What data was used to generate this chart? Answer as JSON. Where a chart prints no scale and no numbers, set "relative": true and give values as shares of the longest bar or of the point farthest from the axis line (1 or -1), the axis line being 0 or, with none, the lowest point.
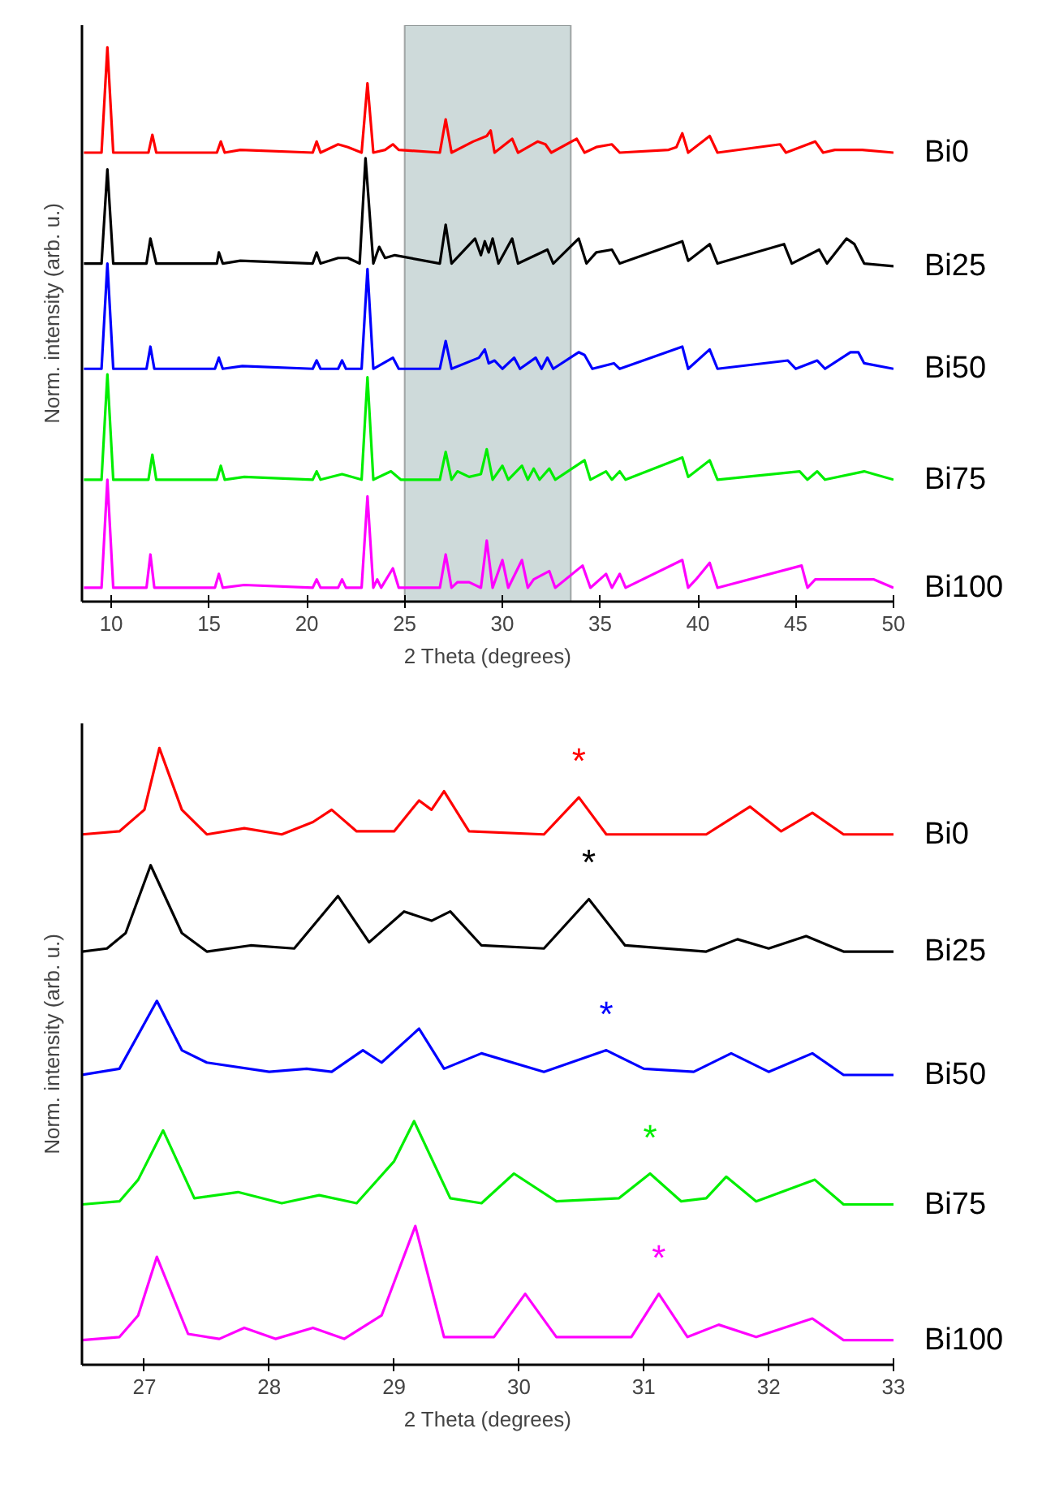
{
  "chart_data": [
    {
      "type": "line",
      "relative": true,
      "xlabel": "2 Theta (degrees)",
      "ylabel": "Norm. intensity (arb. u.)",
      "xlim": [
        8.5,
        50
      ],
      "xticks": [
        10,
        15,
        20,
        25,
        30,
        35,
        40,
        45,
        50
      ],
      "grid": false,
      "legend": false,
      "marker": "none",
      "line_style": "solid",
      "bands": [
        {
          "axis": "x",
          "from": 25,
          "to": 33.5,
          "color": "#c5d3d3"
        }
      ],
      "series": [
        {
          "name": "Bi0",
          "color": "#ff0000",
          "x": [
            8.6,
            9.5,
            9.8,
            10.1,
            11.9,
            12.1,
            12.3,
            15.4,
            15.6,
            15.8,
            16.6,
            20.3,
            20.5,
            20.7,
            21.6,
            22.1,
            22.8,
            23.1,
            23.4,
            24.0,
            24.4,
            24.7,
            26.8,
            27.1,
            27.4,
            28.5,
            29.2,
            29.4,
            29.6,
            30.5,
            30.8,
            31.8,
            32.2,
            32.5,
            33.8,
            34.2,
            34.8,
            35.6,
            36.0,
            38.5,
            38.9,
            39.2,
            39.5,
            40.6,
            41.0,
            44.2,
            44.5,
            46.0,
            46.4,
            47.0,
            48.4,
            50.0
          ],
          "values": [
            0.81,
            0.81,
            1.0,
            0.81,
            0.81,
            0.842,
            0.81,
            0.81,
            0.83,
            0.81,
            0.815,
            0.81,
            0.83,
            0.81,
            0.825,
            0.82,
            0.81,
            0.935,
            0.81,
            0.815,
            0.825,
            0.815,
            0.81,
            0.87,
            0.81,
            0.83,
            0.84,
            0.85,
            0.81,
            0.835,
            0.81,
            0.83,
            0.825,
            0.81,
            0.835,
            0.81,
            0.82,
            0.825,
            0.81,
            0.815,
            0.82,
            0.845,
            0.81,
            0.84,
            0.81,
            0.825,
            0.81,
            0.83,
            0.81,
            0.815,
            0.815,
            0.81
          ]
        },
        {
          "name": "Bi25",
          "color": "#000000",
          "x": [
            8.6,
            9.5,
            9.8,
            10.1,
            11.8,
            12.0,
            12.3,
            15.4,
            15.5,
            15.7,
            16.6,
            20.3,
            20.5,
            20.7,
            21.6,
            22.1,
            22.7,
            23.0,
            23.4,
            23.7,
            24.0,
            24.5,
            26.8,
            27.1,
            27.4,
            28.6,
            28.9,
            29.1,
            29.3,
            29.5,
            29.8,
            30.5,
            30.8,
            32.3,
            32.6,
            33.9,
            34.3,
            34.8,
            35.6,
            36.0,
            38.8,
            39.2,
            39.5,
            40.6,
            41.0,
            44.4,
            44.8,
            46.2,
            46.6,
            47.6,
            48.0,
            48.5,
            50.0
          ],
          "values": [
            0.61,
            0.61,
            0.78,
            0.61,
            0.61,
            0.655,
            0.61,
            0.61,
            0.63,
            0.61,
            0.615,
            0.61,
            0.63,
            0.61,
            0.62,
            0.62,
            0.61,
            0.8,
            0.61,
            0.64,
            0.62,
            0.625,
            0.61,
            0.68,
            0.61,
            0.655,
            0.625,
            0.65,
            0.63,
            0.655,
            0.61,
            0.655,
            0.61,
            0.635,
            0.61,
            0.655,
            0.61,
            0.63,
            0.635,
            0.61,
            0.645,
            0.65,
            0.615,
            0.645,
            0.61,
            0.645,
            0.61,
            0.635,
            0.61,
            0.655,
            0.645,
            0.61,
            0.605
          ]
        },
        {
          "name": "Bi50",
          "color": "#0000ff",
          "x": [
            8.6,
            9.5,
            9.8,
            10.1,
            11.8,
            12.0,
            12.2,
            15.3,
            15.5,
            15.7,
            16.7,
            20.3,
            20.5,
            20.7,
            21.6,
            21.8,
            22.0,
            22.8,
            23.1,
            23.4,
            24.4,
            24.7,
            26.8,
            27.1,
            27.4,
            28.8,
            29.1,
            29.3,
            29.6,
            30.0,
            30.6,
            30.9,
            31.7,
            32.0,
            32.3,
            32.6,
            33.9,
            34.2,
            34.6,
            35.7,
            36.0,
            39.2,
            39.5,
            40.6,
            41.0,
            44.6,
            45.0,
            46.1,
            46.5,
            47.8,
            48.2,
            48.5,
            50.0
          ],
          "values": [
            0.42,
            0.42,
            0.61,
            0.42,
            0.42,
            0.46,
            0.42,
            0.42,
            0.44,
            0.42,
            0.425,
            0.42,
            0.435,
            0.42,
            0.42,
            0.435,
            0.42,
            0.42,
            0.6,
            0.42,
            0.44,
            0.42,
            0.42,
            0.47,
            0.42,
            0.44,
            0.455,
            0.43,
            0.435,
            0.42,
            0.44,
            0.42,
            0.44,
            0.42,
            0.44,
            0.42,
            0.45,
            0.445,
            0.42,
            0.43,
            0.42,
            0.46,
            0.42,
            0.455,
            0.42,
            0.435,
            0.42,
            0.435,
            0.42,
            0.45,
            0.45,
            0.43,
            0.42
          ]
        },
        {
          "name": "Bi75",
          "color": "#00ee00",
          "x": [
            8.6,
            9.5,
            9.8,
            10.1,
            11.9,
            12.1,
            12.3,
            15.4,
            15.6,
            15.8,
            16.8,
            20.3,
            20.5,
            20.7,
            21.8,
            22.8,
            23.1,
            23.4,
            24.3,
            24.8,
            26.8,
            27.1,
            27.4,
            27.7,
            28.3,
            28.9,
            29.2,
            29.5,
            30.0,
            30.3,
            31.0,
            31.3,
            31.6,
            31.9,
            32.4,
            32.7,
            34.2,
            34.5,
            35.3,
            35.6,
            36.0,
            36.3,
            39.2,
            39.5,
            40.6,
            41.0,
            45.2,
            45.6,
            46.1,
            46.5,
            48.5,
            49.0,
            50.0
          ],
          "values": [
            0.22,
            0.22,
            0.41,
            0.22,
            0.22,
            0.265,
            0.22,
            0.22,
            0.245,
            0.22,
            0.225,
            0.22,
            0.235,
            0.22,
            0.23,
            0.22,
            0.405,
            0.22,
            0.235,
            0.22,
            0.22,
            0.27,
            0.22,
            0.235,
            0.225,
            0.23,
            0.275,
            0.22,
            0.245,
            0.22,
            0.245,
            0.22,
            0.24,
            0.22,
            0.24,
            0.22,
            0.255,
            0.22,
            0.235,
            0.22,
            0.235,
            0.22,
            0.26,
            0.225,
            0.255,
            0.22,
            0.235,
            0.22,
            0.235,
            0.22,
            0.235,
            0.23,
            0.22
          ]
        },
        {
          "name": "Bi100",
          "color": "#ff00ff",
          "x": [
            8.6,
            9.5,
            9.8,
            10.1,
            11.8,
            12.0,
            12.2,
            15.3,
            15.5,
            15.7,
            16.8,
            20.3,
            20.5,
            20.7,
            21.6,
            21.8,
            22.0,
            22.8,
            23.1,
            23.4,
            23.6,
            23.8,
            24.4,
            24.7,
            26.8,
            27.1,
            27.4,
            27.7,
            28.3,
            28.9,
            29.2,
            29.5,
            30.0,
            30.3,
            31.0,
            31.3,
            31.6,
            32.4,
            32.7,
            34.1,
            34.5,
            35.3,
            35.6,
            36.0,
            36.3,
            39.2,
            39.5,
            39.9,
            40.6,
            41.0,
            45.3,
            45.6,
            46.0,
            49.0,
            50.0
          ],
          "values": [
            0.025,
            0.025,
            0.22,
            0.025,
            0.025,
            0.085,
            0.025,
            0.025,
            0.05,
            0.025,
            0.03,
            0.025,
            0.04,
            0.025,
            0.025,
            0.04,
            0.025,
            0.025,
            0.19,
            0.025,
            0.04,
            0.025,
            0.06,
            0.025,
            0.025,
            0.085,
            0.025,
            0.035,
            0.035,
            0.025,
            0.11,
            0.025,
            0.075,
            0.025,
            0.075,
            0.025,
            0.04,
            0.055,
            0.025,
            0.065,
            0.025,
            0.05,
            0.025,
            0.05,
            0.025,
            0.075,
            0.025,
            0.04,
            0.07,
            0.025,
            0.065,
            0.025,
            0.04,
            0.04,
            0.025
          ]
        }
      ]
    },
    {
      "type": "line",
      "relative": true,
      "xlabel": "2 Theta (degrees)",
      "ylabel": "Norm. intensity (arb. u.)",
      "xlim": [
        26.5,
        33
      ],
      "xticks": [
        27,
        28,
        29,
        30,
        31,
        32,
        33
      ],
      "grid": false,
      "legend": false,
      "marker": "none",
      "line_style": "solid",
      "annotations": [
        {
          "text": "*",
          "x": 30.48,
          "y": 0.92
        },
        {
          "text": "*",
          "x": 30.56,
          "y": 0.755
        },
        {
          "text": "*",
          "x": 30.7,
          "y": 0.51
        },
        {
          "text": "*",
          "x": 31.05,
          "y": 0.31
        },
        {
          "text": "*",
          "x": 31.12,
          "y": 0.115
        }
      ],
      "series": [
        {
          "name": "Bi0",
          "color": "#ff0000",
          "x": [
            26.5,
            26.8,
            27.0,
            27.12,
            27.3,
            27.5,
            27.8,
            28.1,
            28.35,
            28.5,
            28.7,
            29.0,
            29.2,
            29.3,
            29.4,
            29.6,
            30.2,
            30.48,
            30.7,
            31.5,
            31.85,
            32.1,
            32.35,
            32.6,
            33.0
          ],
          "values": [
            0.86,
            0.865,
            0.9,
            1.0,
            0.9,
            0.86,
            0.87,
            0.86,
            0.88,
            0.9,
            0.865,
            0.865,
            0.915,
            0.9,
            0.93,
            0.865,
            0.86,
            0.92,
            0.86,
            0.86,
            0.905,
            0.865,
            0.895,
            0.86,
            0.86
          ]
        },
        {
          "name": "Bi25",
          "color": "#000000",
          "x": [
            26.5,
            26.7,
            26.85,
            27.05,
            27.3,
            27.5,
            27.85,
            28.2,
            28.55,
            28.8,
            29.08,
            29.3,
            29.45,
            29.7,
            30.2,
            30.56,
            30.85,
            31.5,
            31.75,
            32.0,
            32.3,
            32.6,
            33.0
          ],
          "values": [
            0.67,
            0.675,
            0.7,
            0.81,
            0.7,
            0.67,
            0.68,
            0.675,
            0.76,
            0.685,
            0.735,
            0.72,
            0.735,
            0.68,
            0.675,
            0.755,
            0.68,
            0.67,
            0.69,
            0.675,
            0.695,
            0.67,
            0.67
          ]
        },
        {
          "name": "Bi50",
          "color": "#0000ff",
          "x": [
            26.5,
            26.8,
            27.1,
            27.3,
            27.5,
            28.0,
            28.3,
            28.5,
            28.75,
            28.9,
            29.2,
            29.4,
            29.7,
            30.2,
            30.7,
            31.0,
            31.4,
            31.7,
            32.0,
            32.35,
            32.6,
            33.0
          ],
          "values": [
            0.47,
            0.48,
            0.59,
            0.51,
            0.49,
            0.475,
            0.48,
            0.475,
            0.51,
            0.49,
            0.545,
            0.48,
            0.505,
            0.475,
            0.51,
            0.48,
            0.475,
            0.505,
            0.475,
            0.505,
            0.47,
            0.47
          ]
        },
        {
          "name": "Bi75",
          "color": "#00ee00",
          "x": [
            26.5,
            26.8,
            26.95,
            27.15,
            27.4,
            27.75,
            28.1,
            28.4,
            28.7,
            29.0,
            29.16,
            29.45,
            29.7,
            29.96,
            30.3,
            30.8,
            31.05,
            31.3,
            31.5,
            31.66,
            31.9,
            32.37,
            32.6,
            33.0
          ],
          "values": [
            0.26,
            0.265,
            0.3,
            0.38,
            0.27,
            0.28,
            0.262,
            0.275,
            0.262,
            0.33,
            0.395,
            0.27,
            0.262,
            0.31,
            0.265,
            0.27,
            0.31,
            0.265,
            0.27,
            0.305,
            0.265,
            0.3,
            0.26,
            0.26
          ]
        },
        {
          "name": "Bi100",
          "color": "#ff00ff",
          "x": [
            26.5,
            26.8,
            26.95,
            27.1,
            27.35,
            27.6,
            27.8,
            28.05,
            28.35,
            28.6,
            28.9,
            29.17,
            29.4,
            29.8,
            30.05,
            30.3,
            30.9,
            31.12,
            31.35,
            31.6,
            31.9,
            32.35,
            32.6,
            33.0
          ],
          "values": [
            0.04,
            0.045,
            0.08,
            0.175,
            0.05,
            0.042,
            0.06,
            0.042,
            0.06,
            0.042,
            0.08,
            0.225,
            0.045,
            0.045,
            0.115,
            0.045,
            0.045,
            0.115,
            0.045,
            0.065,
            0.045,
            0.075,
            0.04,
            0.04
          ]
        }
      ]
    }
  ]
}
